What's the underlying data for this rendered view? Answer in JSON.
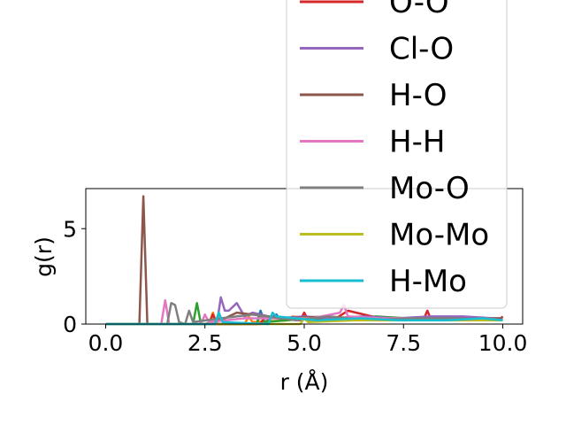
{
  "chart_data": {
    "type": "line",
    "xlabel": "r (Å)",
    "ylabel": "g(r)",
    "xlim": [
      -0.5,
      10.5
    ],
    "ylim": [
      0,
      7.1
    ],
    "xticks": [
      0.0,
      2.5,
      5.0,
      7.5,
      10.0
    ],
    "xtick_labels": [
      "0.0",
      "2.5",
      "5.0",
      "7.5",
      "10.0"
    ],
    "yticks": [
      0,
      5
    ],
    "ytick_labels": [
      "0",
      "5"
    ],
    "grid": false,
    "legend_position": "right, extending above the axes",
    "series": [
      {
        "color": "#1f77b4",
        "x": [
          0,
          3.8,
          3.9,
          4.0,
          4.3,
          4.4,
          5.0,
          5.5,
          6.3,
          7.0,
          7.8,
          8.8,
          9.5,
          10.0
        ],
        "y": [
          0,
          0,
          0.7,
          0.1,
          0.5,
          0.2,
          0.3,
          0.2,
          0.3,
          0.2,
          0.3,
          0.2,
          0.3,
          0.2
        ]
      },
      {
        "color": "#ff7f0e",
        "x": [
          0,
          2.6,
          2.7,
          2.8,
          3.5,
          3.6,
          3.7,
          4.6,
          4.7,
          5.5,
          6.5,
          7.3,
          8.3,
          9.2,
          10.0
        ],
        "y": [
          0,
          0,
          0.6,
          0,
          0,
          0.4,
          0.1,
          0.2,
          0.4,
          0.2,
          0.3,
          0.2,
          0.3,
          0.2,
          0.2
        ]
      },
      {
        "color": "#2ca02c",
        "x": [
          0,
          2.2,
          2.3,
          2.4,
          3.8,
          3.9,
          4.0,
          5.2,
          6.0,
          6.8,
          7.6,
          8.5,
          9.4,
          10.0
        ],
        "y": [
          0,
          0,
          1.1,
          0,
          0,
          0.5,
          0.1,
          0.3,
          0.2,
          0.4,
          0.3,
          0.2,
          0.3,
          0.2
        ]
      },
      {
        "color": "#d62728",
        "x": [
          0,
          2.6,
          2.7,
          2.8,
          3.9,
          4.0,
          4.9,
          5.0,
          5.1,
          5.8,
          6.1,
          6.9,
          8.0,
          8.1,
          8.2,
          9.0,
          9.9,
          10.0
        ],
        "y": [
          0,
          0,
          0.5,
          0,
          0,
          0.4,
          0.2,
          0.6,
          0.2,
          0.3,
          0.7,
          0.3,
          0.2,
          0.7,
          0.2,
          0.3,
          0.2,
          0.4
        ]
      },
      {
        "name": "Cl-O",
        "color": "#9467bd",
        "x": [
          0,
          2.8,
          2.9,
          3.0,
          3.1,
          3.3,
          3.5,
          3.7,
          4.3,
          5.0,
          5.7,
          6.5,
          7.3,
          8.2,
          9.0,
          9.8,
          10.0
        ],
        "y": [
          0,
          0,
          1.4,
          0.7,
          0.7,
          1.1,
          0.4,
          0.6,
          0.3,
          0.4,
          0.3,
          0.4,
          0.3,
          0.4,
          0.4,
          0.3,
          0.3
        ]
      },
      {
        "name": "H-O",
        "color": "#8c564b",
        "x": [
          0,
          0.85,
          0.95,
          1.05,
          1.2,
          2.5,
          3.0,
          3.3,
          4.5,
          5.6,
          6.2,
          7.2,
          8.4,
          9.6,
          10.0
        ],
        "y": [
          0,
          0,
          6.7,
          0,
          0,
          0,
          0.3,
          0.6,
          0.3,
          0.4,
          0.3,
          0.3,
          0.2,
          0.3,
          0.3
        ]
      },
      {
        "name": "H-H",
        "color": "#e377c2",
        "x": [
          0,
          1.4,
          1.5,
          1.6,
          2.4,
          2.5,
          2.6,
          3.5,
          4.4,
          5.2,
          5.9,
          6.0,
          6.1,
          6.9,
          7.8,
          8.7,
          9.6,
          10.0
        ],
        "y": [
          0,
          0,
          1.25,
          0,
          0,
          0.5,
          0.1,
          0.3,
          0.3,
          0.3,
          0.6,
          1.0,
          0.4,
          0.3,
          0.3,
          0.2,
          0.3,
          0.2
        ]
      },
      {
        "name": "Mo-O",
        "color": "#7f7f7f",
        "x": [
          0,
          1.55,
          1.65,
          1.75,
          1.85,
          2.0,
          2.1,
          2.2,
          2.9,
          3.7,
          4.8,
          5.6,
          6.6,
          7.7,
          8.8,
          9.8,
          10.0
        ],
        "y": [
          0,
          0,
          1.1,
          1.0,
          0.1,
          0,
          0.7,
          0.1,
          0.3,
          0.5,
          0.2,
          0.4,
          0.2,
          0.3,
          0.3,
          0.2,
          0.2
        ]
      },
      {
        "name": "Mo-Mo",
        "color": "#bcbd22",
        "x": [
          0,
          4.9,
          5.0,
          5.1,
          6.3,
          7.6,
          8.9,
          10.0
        ],
        "y": [
          0,
          0,
          0.3,
          0.1,
          0.2,
          0.2,
          0.2,
          0.2
        ]
      },
      {
        "name": "H-Mo",
        "color": "#17becf",
        "x": [
          0,
          2.75,
          2.85,
          2.95,
          4.1,
          4.2,
          4.3,
          5.3,
          6.4,
          7.4,
          8.6,
          9.5,
          10.0
        ],
        "y": [
          0,
          0,
          0.6,
          0.1,
          0,
          0.6,
          0.4,
          0.2,
          0.3,
          0.2,
          0.2,
          0.3,
          0.2
        ]
      }
    ],
    "legend_entries": [
      {
        "label": "O-O",
        "color": "#d62728"
      },
      {
        "label": "Cl-O",
        "color": "#9467bd"
      },
      {
        "label": "H-O",
        "color": "#8c564b"
      },
      {
        "label": "H-H",
        "color": "#e377c2"
      },
      {
        "label": "Mo-O",
        "color": "#7f7f7f"
      },
      {
        "label": "Mo-Mo",
        "color": "#bcbd22"
      },
      {
        "label": "H-Mo",
        "color": "#17becf"
      }
    ]
  }
}
